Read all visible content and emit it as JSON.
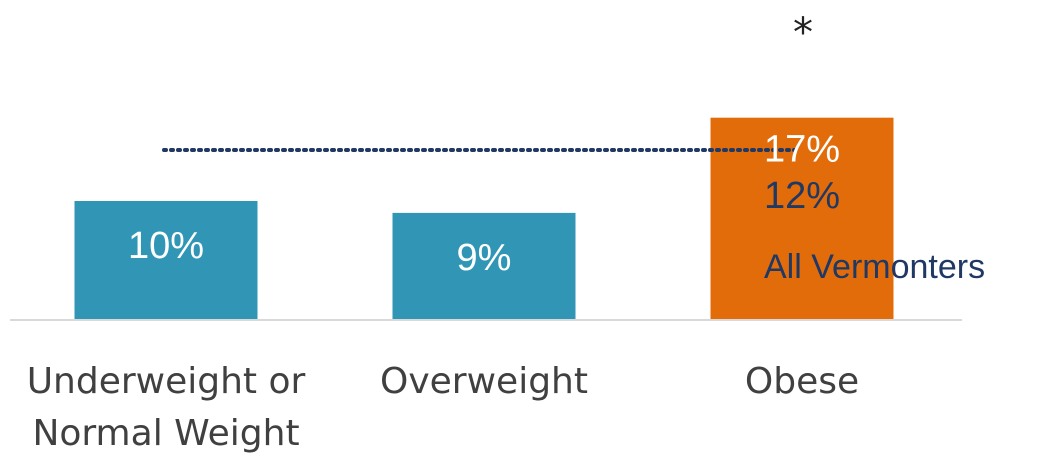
{
  "chart_data": {
    "type": "bar",
    "categories": [
      "Underweight or Normal Weight",
      "Overweight",
      "Obese"
    ],
    "category_lines": [
      [
        "Underweight or",
        "Normal Weight"
      ],
      [
        "Overweight"
      ],
      [
        "Obese"
      ]
    ],
    "values": [
      10,
      9,
      17
    ],
    "value_labels": [
      "10%",
      "9%",
      "17%"
    ],
    "bar_colors": [
      "#3196b5",
      "#3196b5",
      "#e36c0a"
    ],
    "label_colors": [
      "#ffffff",
      "#ffffff",
      "#ffffff"
    ],
    "reference_line": {
      "value": 12,
      "value_label": "12%",
      "label": "All Vermonters",
      "color": "#1f3864",
      "style": "dotted"
    },
    "annotation": "*",
    "ylim": [
      0,
      20
    ],
    "grid": false,
    "title": "",
    "xlabel": "",
    "ylabel": ""
  }
}
